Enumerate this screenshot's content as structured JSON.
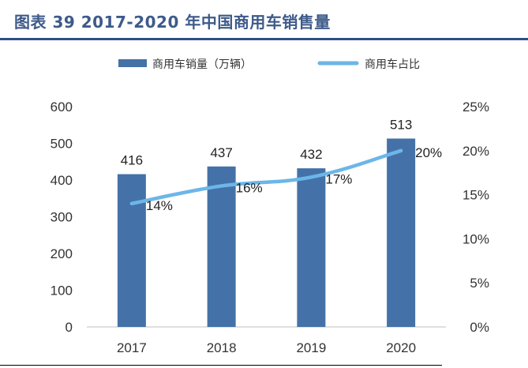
{
  "title": "图表 39 2017-2020 年中国商用车销售量",
  "chart_data": {
    "type": "bar+line",
    "categories": [
      "2017",
      "2018",
      "2019",
      "2020"
    ],
    "series": [
      {
        "name": "商用车销量（万辆）",
        "type": "bar",
        "axis": "left",
        "values": [
          416,
          437,
          432,
          513
        ],
        "labels": [
          "416",
          "437",
          "432",
          "513"
        ],
        "color": "#4472A8"
      },
      {
        "name": "商用车占比",
        "type": "line",
        "axis": "right",
        "values": [
          14,
          16,
          17,
          20
        ],
        "labels": [
          "14%",
          "16%",
          "17%",
          "20%"
        ],
        "color": "#6CB6E8"
      }
    ],
    "left_axis": {
      "min": 0,
      "max": 600,
      "ticks": [
        "0",
        "100",
        "200",
        "300",
        "400",
        "500",
        "600"
      ]
    },
    "right_axis": {
      "min": 0,
      "max": 25,
      "ticks": [
        "0%",
        "5%",
        "10%",
        "15%",
        "20%",
        "25%"
      ]
    },
    "legend_position": "top",
    "grid": false
  }
}
